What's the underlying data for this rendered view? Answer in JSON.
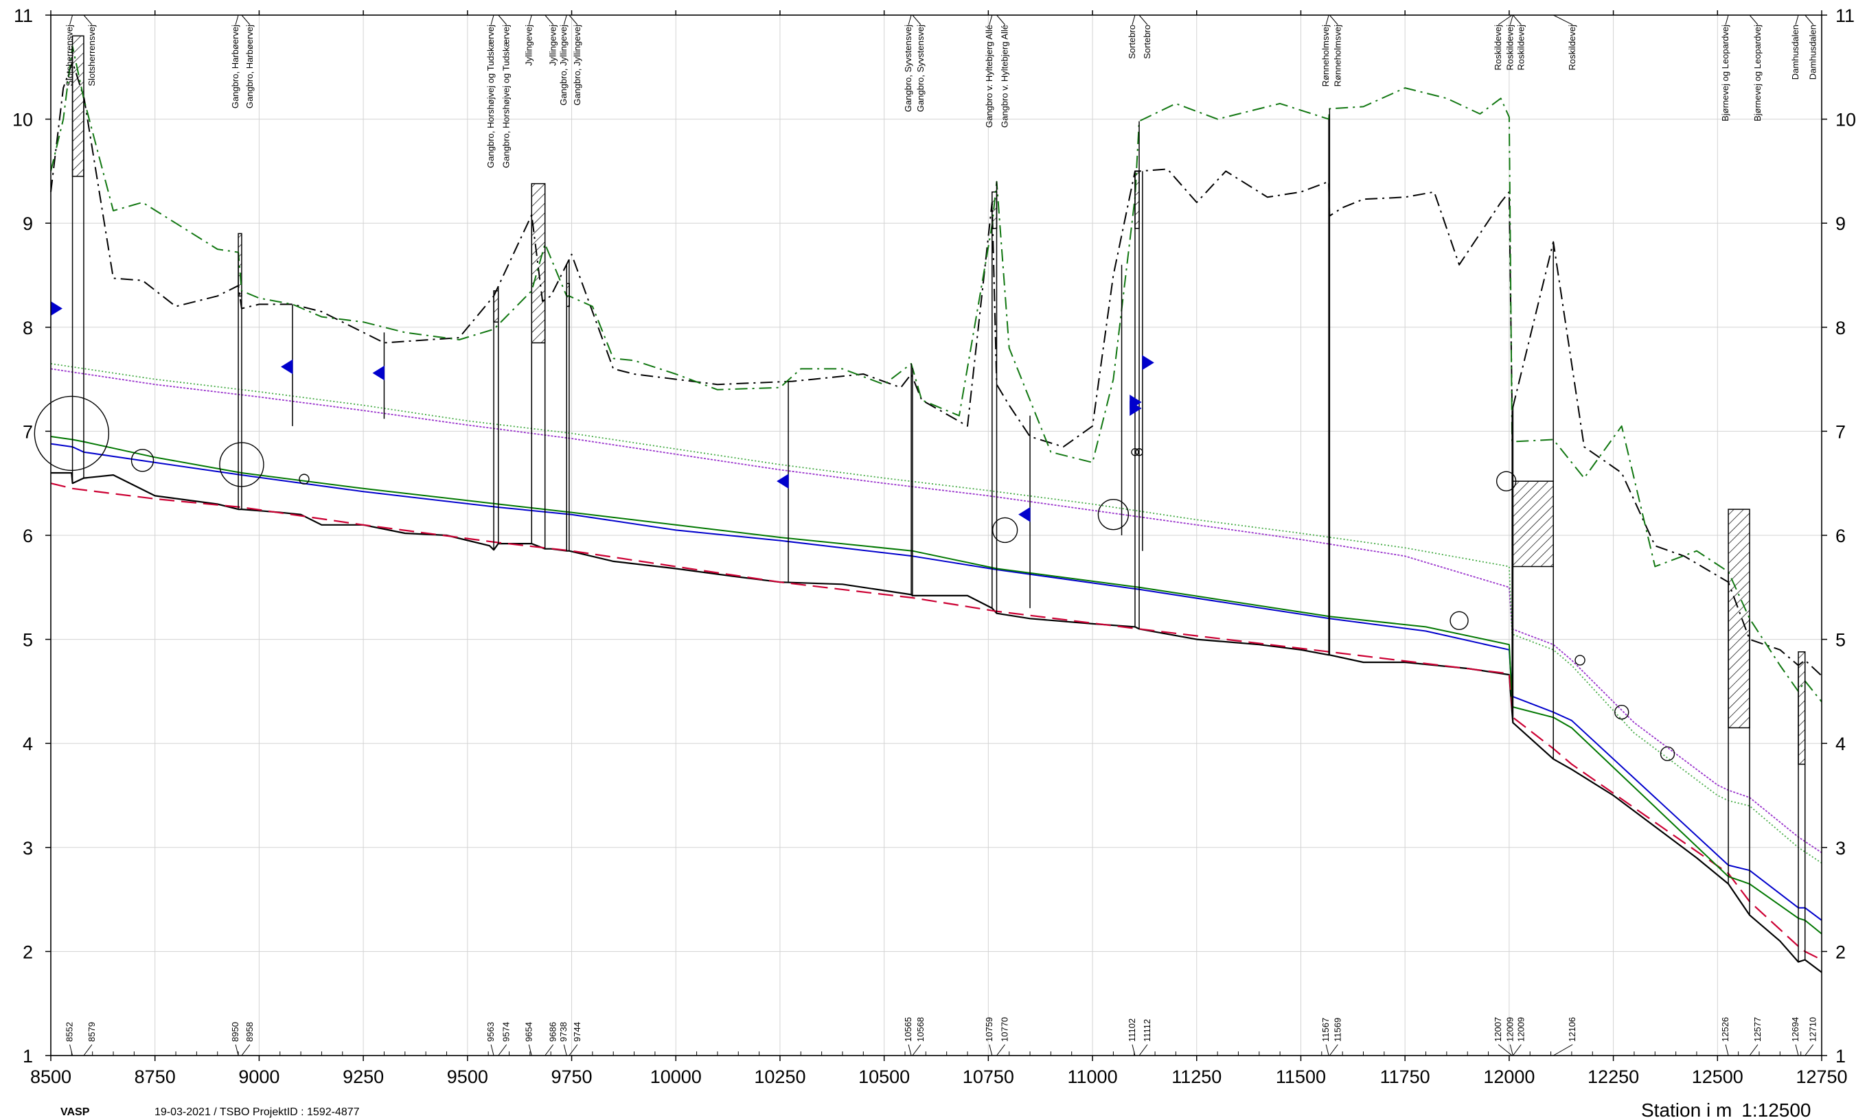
{
  "chart_data": {
    "type": "line",
    "xlabel": "Station i m",
    "scale_label": "1:12500",
    "xlim": [
      8500,
      12750
    ],
    "ylim": [
      1,
      11
    ],
    "x_ticks": [
      8500,
      8750,
      9000,
      9250,
      9500,
      9750,
      10000,
      10250,
      10500,
      10750,
      11000,
      11250,
      11500,
      11750,
      12000,
      12250,
      12500,
      12750
    ],
    "y_ticks": [
      1,
      2,
      3,
      4,
      5,
      6,
      7,
      8,
      9,
      10,
      11
    ],
    "grid": true,
    "colors": {
      "bottom": "#000000",
      "bed_design": "#cc0033",
      "water_low": "#0000cc",
      "water_mid": "#007700",
      "water_high": "#9933cc",
      "water_top": "#44aa44",
      "bank_left": "#000000",
      "bank_right": "#117711",
      "marker": "#0000cc"
    },
    "series": [
      {
        "key": "bottom",
        "x": [
          8500,
          8550,
          8552,
          8579,
          8650,
          8750,
          8900,
          8950,
          8958,
          9050,
          9100,
          9150,
          9250,
          9350,
          9450,
          9553,
          9563,
          9574,
          9654,
          9686,
          9700,
          9738,
          9744,
          9850,
          10000,
          10150,
          10250,
          10400,
          10565,
          10568,
          10700,
          10759,
          10770,
          10850,
          11000,
          11102,
          11112,
          11250,
          11400,
          11500,
          11567,
          11569,
          11650,
          11750,
          11900,
          12000,
          12007,
          12009,
          12106,
          12150,
          12250,
          12350,
          12450,
          12526,
          12577,
          12650,
          12694,
          12710,
          12750
        ],
        "y": [
          6.6,
          6.6,
          6.5,
          6.55,
          6.58,
          6.38,
          6.3,
          6.25,
          6.25,
          6.22,
          6.2,
          6.1,
          6.1,
          6.02,
          6.0,
          5.9,
          5.86,
          5.92,
          5.92,
          5.87,
          5.87,
          5.85,
          5.85,
          5.75,
          5.68,
          5.6,
          5.55,
          5.53,
          5.43,
          5.42,
          5.42,
          5.3,
          5.25,
          5.2,
          5.15,
          5.12,
          5.1,
          5.0,
          4.95,
          4.9,
          4.85,
          4.85,
          4.78,
          4.78,
          4.72,
          4.66,
          4.3,
          4.2,
          3.85,
          3.75,
          3.5,
          3.2,
          2.9,
          2.65,
          2.35,
          2.1,
          1.9,
          1.92,
          1.8
        ]
      },
      {
        "key": "bed_design",
        "x": [
          8500,
          8552,
          8750,
          8958,
          9250,
          9574,
          9750,
          10000,
          10250,
          10568,
          10770,
          11112,
          11569,
          12000,
          12007,
          12009,
          12106,
          12150,
          12526,
          12577,
          12694,
          12710,
          12750
        ],
        "y": [
          6.5,
          6.45,
          6.35,
          6.27,
          6.1,
          5.93,
          5.85,
          5.7,
          5.55,
          5.4,
          5.27,
          5.1,
          4.88,
          4.67,
          4.35,
          4.25,
          3.95,
          3.8,
          2.75,
          2.48,
          2.05,
          2.0,
          1.92
        ]
      },
      {
        "key": "water_low",
        "x": [
          8500,
          8552,
          8579,
          8750,
          8958,
          9250,
          9574,
          9750,
          10000,
          10250,
          10568,
          10770,
          11112,
          11569,
          11800,
          12000,
          12007,
          12009,
          12106,
          12150,
          12526,
          12577,
          12694,
          12710,
          12750
        ],
        "y": [
          6.88,
          6.85,
          6.8,
          6.7,
          6.58,
          6.42,
          6.27,
          6.2,
          6.05,
          5.95,
          5.8,
          5.67,
          5.48,
          5.2,
          5.08,
          4.9,
          4.5,
          4.45,
          4.3,
          4.22,
          2.83,
          2.78,
          2.42,
          2.42,
          2.3
        ]
      },
      {
        "key": "water_mid",
        "x": [
          8500,
          8552,
          8579,
          8750,
          8958,
          9250,
          9574,
          9750,
          10000,
          10250,
          10568,
          10770,
          11112,
          11569,
          11800,
          12000,
          12007,
          12009,
          12106,
          12150,
          12526,
          12577,
          12694,
          12710,
          12750
        ],
        "y": [
          6.95,
          6.92,
          6.9,
          6.75,
          6.6,
          6.45,
          6.3,
          6.22,
          6.1,
          5.98,
          5.85,
          5.68,
          5.5,
          5.22,
          5.12,
          4.95,
          4.42,
          4.35,
          4.25,
          4.15,
          2.72,
          2.65,
          2.32,
          2.3,
          2.17
        ]
      },
      {
        "key": "water_high",
        "x": [
          8500,
          8750,
          9000,
          9250,
          9500,
          9750,
          10000,
          10250,
          10500,
          10750,
          11000,
          11250,
          11500,
          11750,
          12000,
          12007,
          12106,
          12150,
          12300,
          12500,
          12526,
          12577,
          12694,
          12750
        ],
        "y": [
          7.6,
          7.45,
          7.33,
          7.2,
          7.06,
          6.93,
          6.78,
          6.63,
          6.5,
          6.38,
          6.24,
          6.1,
          5.96,
          5.8,
          5.5,
          5.1,
          4.95,
          4.8,
          4.2,
          3.6,
          3.55,
          3.48,
          3.1,
          2.95
        ]
      },
      {
        "key": "water_top",
        "x": [
          8500,
          8750,
          9000,
          9250,
          9500,
          9750,
          10000,
          10250,
          10500,
          10750,
          11000,
          11250,
          11500,
          11750,
          12000,
          12007,
          12106,
          12150,
          12300,
          12500,
          12526,
          12577,
          12694,
          12750
        ],
        "y": [
          7.65,
          7.5,
          7.38,
          7.25,
          7.1,
          6.98,
          6.83,
          6.68,
          6.55,
          6.43,
          6.3,
          6.15,
          6.02,
          5.88,
          5.7,
          5.05,
          4.9,
          4.75,
          4.1,
          3.5,
          3.45,
          3.4,
          3.0,
          2.85
        ]
      },
      {
        "key": "bank_left",
        "x": [
          8500,
          8530,
          8552,
          8580,
          8650,
          8720,
          8800,
          8900,
          8950,
          8958,
          9000,
          9080,
          9150,
          9300,
          9480,
          9563,
          9654,
          9680,
          9700,
          9750,
          9850,
          9900,
          10000,
          10100,
          10280,
          10330,
          10450,
          10540,
          10565,
          10590,
          10700,
          10759,
          10770,
          10800,
          10850,
          10930,
          11000,
          11050,
          11102,
          11112,
          11180,
          11250,
          11320,
          11420,
          11500,
          11567,
          11569,
          11600,
          11650,
          11750,
          11820,
          11880,
          11980,
          12000,
          12007,
          12106,
          12180,
          12270,
          12350,
          12420,
          12526,
          12577,
          12650,
          12694,
          12710,
          12750
        ],
        "y": [
          9.3,
          10.3,
          10.55,
          10.2,
          8.47,
          8.45,
          8.2,
          8.3,
          8.4,
          8.18,
          8.22,
          8.22,
          8.15,
          7.85,
          7.9,
          8.3,
          9.08,
          8.25,
          8.3,
          8.7,
          7.6,
          7.55,
          7.5,
          7.45,
          7.48,
          7.5,
          7.55,
          7.42,
          7.55,
          7.3,
          7.05,
          9.2,
          7.45,
          7.25,
          6.95,
          6.85,
          7.05,
          8.5,
          9.5,
          9.5,
          9.52,
          9.2,
          9.5,
          9.25,
          9.3,
          9.4,
          9.07,
          9.15,
          9.23,
          9.25,
          9.3,
          8.6,
          9.2,
          9.3,
          7.2,
          8.82,
          6.85,
          6.6,
          5.9,
          5.8,
          5.55,
          5.0,
          4.9,
          4.75,
          4.8,
          4.65
        ]
      },
      {
        "key": "bank_right",
        "x": [
          8500,
          8530,
          8552,
          8579,
          8650,
          8720,
          8800,
          8900,
          8950,
          8958,
          9000,
          9080,
          9150,
          9250,
          9350,
          9480,
          9563,
          9654,
          9686,
          9738,
          9744,
          9800,
          9850,
          9900,
          10000,
          10100,
          10250,
          10300,
          10400,
          10500,
          10565,
          10590,
          10680,
          10759,
          10770,
          10800,
          10850,
          10900,
          11000,
          11050,
          11102,
          11112,
          11200,
          11300,
          11450,
          11567,
          11569,
          11650,
          11750,
          11850,
          11930,
          11980,
          12000,
          12007,
          12106,
          12180,
          12270,
          12350,
          12450,
          12526,
          12577,
          12650,
          12694,
          12710,
          12750
        ],
        "y": [
          9.5,
          10.0,
          10.7,
          10.2,
          9.12,
          9.2,
          9.0,
          8.75,
          8.72,
          8.35,
          8.28,
          8.22,
          8.1,
          8.05,
          7.95,
          7.88,
          7.98,
          8.35,
          8.8,
          8.3,
          8.3,
          8.2,
          7.7,
          7.68,
          7.55,
          7.4,
          7.42,
          7.6,
          7.6,
          7.45,
          7.65,
          7.3,
          7.15,
          8.98,
          9.4,
          7.8,
          7.3,
          6.8,
          6.7,
          7.5,
          9.25,
          9.98,
          10.15,
          10.0,
          10.15,
          10.0,
          10.1,
          10.12,
          10.3,
          10.2,
          10.05,
          10.2,
          10.02,
          6.9,
          6.92,
          6.55,
          7.05,
          5.7,
          5.85,
          5.65,
          5.2,
          4.75,
          4.5,
          4.6,
          4.4
        ]
      }
    ],
    "bridges": [
      {
        "names": [
          "Slotsherrensvej",
          "Slotsherrensvej"
        ],
        "stations": [
          "8552",
          "8579"
        ]
      },
      {
        "names": [
          "Gangbro, Harbøervej",
          "Gangbro, Harbøervej"
        ],
        "stations": [
          "8950",
          "8958"
        ]
      },
      {
        "names": [
          "Gangbro, Horshøjvej og Tudskærvej",
          "Gangbro, Horshøjvej og Tudskærvej"
        ],
        "stations": [
          "9563",
          "9574"
        ]
      },
      {
        "names": [
          "Jyllingevej",
          "Jyllingevej"
        ],
        "stations": [
          "9654",
          "9686"
        ]
      },
      {
        "names": [
          "Gangbro, Jyllingevej",
          "Gangbro, Jyllingevej"
        ],
        "stations": [
          "9738",
          "9744"
        ]
      },
      {
        "names": [
          "Gangbro, Syvstensvej",
          "Gangbro, Syvstensvej"
        ],
        "stations": [
          "10565",
          "10568"
        ]
      },
      {
        "names": [
          "Gangbro v. Hyltebjerg Allé",
          "Gangbro v. Hyltebjerg Allé"
        ],
        "stations": [
          "10759",
          "10770"
        ]
      },
      {
        "names": [
          "Sortebro",
          "Sortebro"
        ],
        "stations": [
          "11102",
          "11112"
        ]
      },
      {
        "names": [
          "Rønneholmsvej",
          "Rønneholmsvej"
        ],
        "stations": [
          "11567",
          "11569"
        ]
      },
      {
        "names": [
          "Roskildevej",
          "Roskildevej",
          "Roskildevej",
          "Roskildevej"
        ],
        "stations": [
          "12007",
          "12009",
          "12009",
          "12106"
        ]
      },
      {
        "names": [
          "Bjørnevej og Leopardvej",
          "Bjørnevej og Leopardvej"
        ],
        "stations": [
          "12526",
          "12577"
        ]
      },
      {
        "names": [
          "Damhusdalen",
          "Damhusdalen"
        ],
        "stations": [
          "12694",
          "12710"
        ]
      }
    ],
    "bridge_sections": [
      {
        "x1": 8552,
        "x2": 8579,
        "y_bottom": 9.45,
        "y_top": 10.8
      },
      {
        "x1": 8950,
        "x2": 8958,
        "y_bottom": 8.3,
        "y_top": 8.9
      },
      {
        "x1": 9563,
        "x2": 9574,
        "y_bottom": 8.05,
        "y_top": 8.35
      },
      {
        "x1": 9654,
        "x2": 9686,
        "y_bottom": 7.85,
        "y_top": 9.38
      },
      {
        "x1": 9738,
        "x2": 9744,
        "y_bottom": 8.2,
        "y_top": 8.42
      },
      {
        "x1": 10759,
        "x2": 10770,
        "y_bottom": 8.95,
        "y_top": 9.3
      },
      {
        "x1": 11102,
        "x2": 11112,
        "y_bottom": 8.95,
        "y_top": 9.5
      },
      {
        "x1": 12009,
        "x2": 12106,
        "y_bottom": 5.7,
        "y_top": 6.52
      },
      {
        "x1": 12526,
        "x2": 12577,
        "y_bottom": 4.15,
        "y_top": 6.25
      },
      {
        "x1": 12694,
        "x2": 12710,
        "y_bottom": 3.8,
        "y_top": 4.88
      }
    ],
    "inlets": [
      {
        "x": 8550,
        "y": 6.98,
        "size": 54
      },
      {
        "x": 8720,
        "y": 6.72,
        "size": 16
      },
      {
        "x": 8958,
        "y": 6.68,
        "size": 32
      },
      {
        "x": 9108,
        "y": 6.54,
        "size": 7
      },
      {
        "x": 10790,
        "y": 6.05,
        "size": 18
      },
      {
        "x": 11050,
        "y": 6.2,
        "size": 22
      },
      {
        "x": 11102,
        "y": 6.8,
        "size": 5
      },
      {
        "x": 11112,
        "y": 6.8,
        "size": 5
      },
      {
        "x": 11993,
        "y": 6.52,
        "size": 14
      },
      {
        "x": 11880,
        "y": 5.18,
        "size": 13
      },
      {
        "x": 12170,
        "y": 4.8,
        "size": 7
      },
      {
        "x": 12270,
        "y": 4.3,
        "size": 10
      },
      {
        "x": 12380,
        "y": 3.9,
        "size": 10
      }
    ],
    "flags": [
      {
        "x": 8500,
        "y": 8.18,
        "dir": "right"
      },
      {
        "x": 9080,
        "y": 7.62,
        "dir": "left"
      },
      {
        "x": 9300,
        "y": 7.56,
        "dir": "left"
      },
      {
        "x": 10270,
        "y": 6.52,
        "dir": "left"
      },
      {
        "x": 10850,
        "y": 6.2,
        "dir": "left"
      },
      {
        "x": 11090,
        "y": 7.28,
        "dir": "right"
      },
      {
        "x": 11090,
        "y": 7.22,
        "dir": "right"
      },
      {
        "x": 11120,
        "y": 7.66,
        "dir": "right"
      }
    ],
    "verticals": [
      {
        "x": 9080,
        "y1": 7.05,
        "y2": 8.22
      },
      {
        "x": 9300,
        "y1": 7.12,
        "y2": 7.95
      },
      {
        "x": 10270,
        "y1": 5.55,
        "y2": 7.48
      },
      {
        "x": 10850,
        "y1": 5.3,
        "y2": 7.15
      },
      {
        "x": 11070,
        "y1": 6.0,
        "y2": 8.6
      },
      {
        "x": 11120,
        "y1": 5.85,
        "y2": 9.5
      }
    ]
  },
  "footer": {
    "program": "VASP",
    "meta": "19-03-2021 / TSBO   ProjektID : 1592-4877"
  }
}
